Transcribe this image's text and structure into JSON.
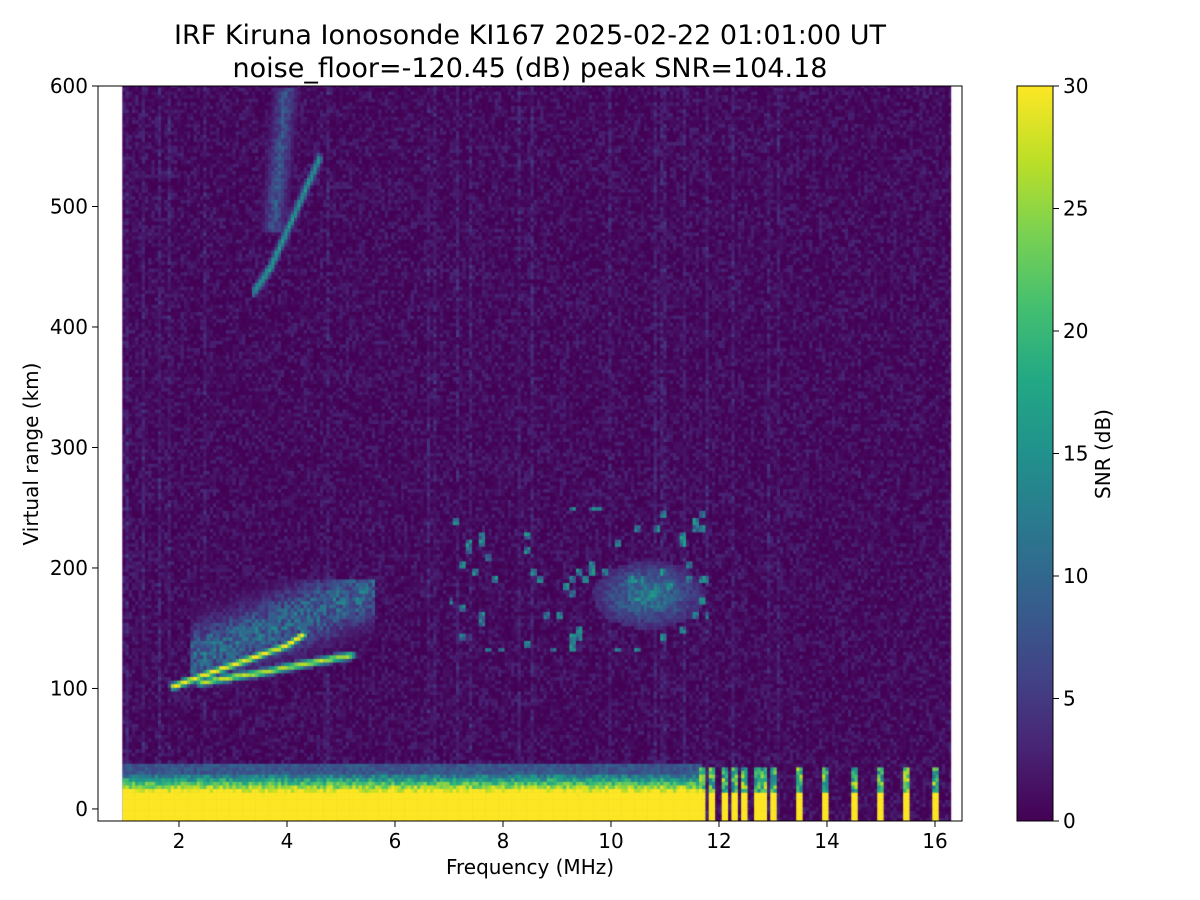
{
  "chart_data": {
    "type": "heatmap",
    "title": "IRF Kiruna Ionosonde KI167 2025-02-22 01:01:00  UT",
    "subtitle": "noise_floor=-120.45 (dB) peak SNR=104.18",
    "xlabel": "Frequency (MHz)",
    "ylabel": "Virtual range (km)",
    "xlim": [
      0.5,
      16.5
    ],
    "ylim": [
      -10,
      600
    ],
    "x_ticks": [
      2,
      4,
      6,
      8,
      10,
      12,
      14,
      16
    ],
    "y_ticks": [
      0,
      100,
      200,
      300,
      400,
      500,
      600
    ],
    "grid": false,
    "colorbar": {
      "label": "SNR (dB)",
      "range": [
        0,
        30
      ],
      "ticks": [
        0,
        5,
        10,
        15,
        20,
        25,
        30
      ],
      "colormap": "viridis"
    },
    "data_extent": {
      "freq_min": 0.95,
      "freq_max": 16.3
    },
    "features": [
      {
        "name": "ground clutter",
        "freq_range": [
          0.95,
          11.7
        ],
        "range_km": [
          -5,
          30
        ],
        "snr_db": 30
      },
      {
        "name": "pulsed high-frequency returns",
        "freqs": [
          11.7,
          11.9,
          12.1,
          12.3,
          12.5,
          12.7,
          12.85,
          13.0,
          13.5,
          14.0,
          14.5,
          15.0,
          15.5,
          16.0
        ],
        "range_km": [
          -5,
          35
        ],
        "snr_db": 30
      },
      {
        "name": "E-region trace (upper)",
        "points": [
          [
            1.9,
            102
          ],
          [
            2.5,
            112
          ],
          [
            3.0,
            120
          ],
          [
            3.5,
            128
          ],
          [
            4.0,
            136
          ],
          [
            4.3,
            145
          ]
        ],
        "snr_db": 28
      },
      {
        "name": "E-region trace (lower)",
        "points": [
          [
            2.4,
            105
          ],
          [
            3.0,
            110
          ],
          [
            3.6,
            114
          ],
          [
            4.0,
            118
          ],
          [
            4.6,
            123
          ],
          [
            5.2,
            128
          ]
        ],
        "snr_db": 25
      },
      {
        "name": "diffuse E echoes",
        "freq_range": [
          2.2,
          5.6
        ],
        "range_km": [
          100,
          190
        ],
        "snr_db": 12
      },
      {
        "name": "sporadic F echoes",
        "freq_range": [
          7.0,
          11.8
        ],
        "range_km": [
          130,
          250
        ],
        "snr_db": 12
      },
      {
        "name": "multi-hop trace",
        "points": [
          [
            3.4,
            430
          ],
          [
            3.7,
            450
          ],
          [
            4.0,
            480
          ],
          [
            4.3,
            510
          ],
          [
            4.6,
            540
          ]
        ],
        "snr_db": 14
      },
      {
        "name": "multi-hop diffuse",
        "freq_range": [
          3.2,
          4.3
        ],
        "range_km": [
          480,
          600
        ],
        "snr_db": 10
      }
    ]
  }
}
